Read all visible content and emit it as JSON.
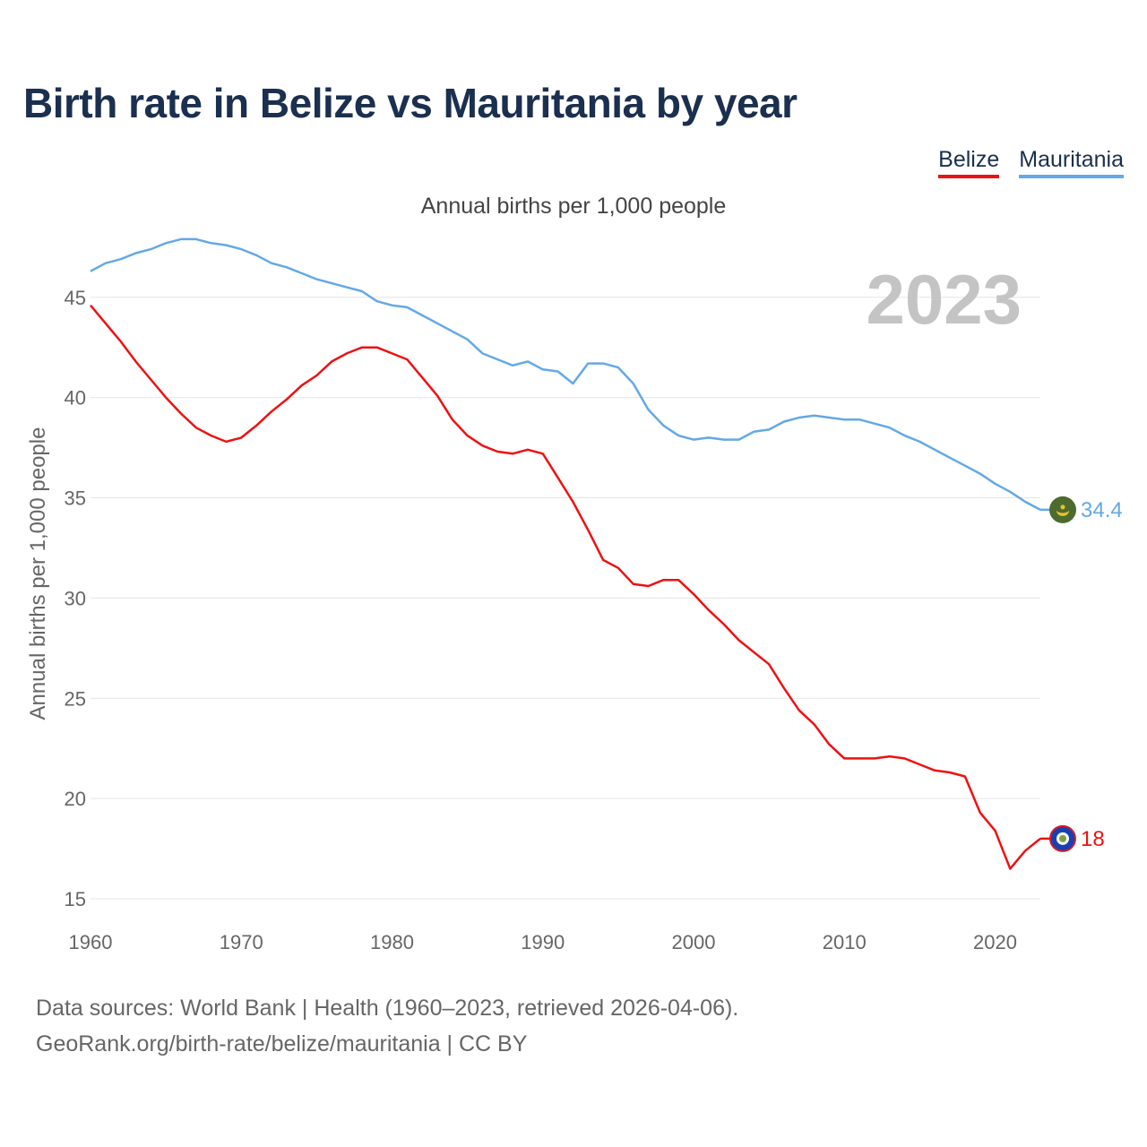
{
  "title": "Birth rate in Belize vs Mauritania by year",
  "legend": [
    {
      "name": "Belize",
      "color": "#ee1111"
    },
    {
      "name": "Mauritania",
      "color": "#64a8e6"
    }
  ],
  "year_label": "2023",
  "source": {
    "line1": "Data sources: World Bank | Health (1960–2023, retrieved 2026-04-06).",
    "line2": "GeoRank.org/birth-rate/belize/mauritania | CC BY"
  },
  "chart_data": {
    "type": "line",
    "title": "Annual births per 1,000 people",
    "xlabel": "",
    "ylabel": "Annual births per 1,000 people",
    "xlim": [
      1960,
      2023
    ],
    "ylim": [
      15,
      47
    ],
    "x_ticks": [
      1960,
      1970,
      1980,
      1990,
      2000,
      2010,
      2020
    ],
    "y_ticks": [
      15,
      20,
      25,
      30,
      35,
      40,
      45
    ],
    "grid": true,
    "legend_position": "top-right",
    "x": [
      1960,
      1961,
      1962,
      1963,
      1964,
      1965,
      1966,
      1967,
      1968,
      1969,
      1970,
      1971,
      1972,
      1973,
      1974,
      1975,
      1976,
      1977,
      1978,
      1979,
      1980,
      1981,
      1982,
      1983,
      1984,
      1985,
      1986,
      1987,
      1988,
      1989,
      1990,
      1991,
      1992,
      1993,
      1994,
      1995,
      1996,
      1997,
      1998,
      1999,
      2000,
      2001,
      2002,
      2003,
      2004,
      2005,
      2006,
      2007,
      2008,
      2009,
      2010,
      2011,
      2012,
      2013,
      2014,
      2015,
      2016,
      2017,
      2018,
      2019,
      2020,
      2021,
      2022,
      2023
    ],
    "series": [
      {
        "name": "Belize",
        "color": "#ee1111",
        "end_label": "18",
        "values": [
          44.6,
          43.7,
          42.8,
          41.8,
          40.9,
          40.0,
          39.2,
          38.5,
          38.1,
          37.8,
          38.0,
          38.6,
          39.3,
          39.9,
          40.6,
          41.1,
          41.8,
          42.2,
          42.5,
          42.5,
          42.2,
          41.9,
          41.0,
          40.1,
          38.9,
          38.1,
          37.6,
          37.3,
          37.2,
          37.4,
          37.2,
          36.0,
          34.8,
          33.4,
          31.9,
          31.5,
          30.7,
          30.6,
          30.9,
          30.9,
          30.2,
          29.4,
          28.7,
          27.9,
          27.3,
          26.7,
          25.5,
          24.4,
          23.7,
          22.7,
          22.0,
          22.0,
          22.0,
          22.1,
          22.0,
          21.7,
          21.4,
          21.3,
          21.1,
          19.3,
          18.4,
          16.5,
          17.4,
          18.0
        ]
      },
      {
        "name": "Mauritania",
        "color": "#64a8e6",
        "end_label": "34.4",
        "values": [
          46.3,
          46.7,
          46.9,
          47.2,
          47.4,
          47.7,
          47.9,
          47.9,
          47.7,
          47.6,
          47.4,
          47.1,
          46.7,
          46.5,
          46.2,
          45.9,
          45.7,
          45.5,
          45.3,
          44.8,
          44.6,
          44.5,
          44.1,
          43.7,
          43.3,
          42.9,
          42.2,
          41.9,
          41.6,
          41.8,
          41.4,
          41.3,
          40.7,
          41.7,
          41.7,
          41.5,
          40.7,
          39.4,
          38.6,
          38.1,
          37.9,
          38.0,
          37.9,
          37.9,
          38.3,
          38.4,
          38.8,
          39.0,
          39.1,
          39.0,
          38.9,
          38.9,
          38.7,
          38.5,
          38.1,
          37.8,
          37.4,
          37.0,
          36.6,
          36.2,
          35.7,
          35.3,
          34.8,
          34.4
        ]
      }
    ]
  }
}
